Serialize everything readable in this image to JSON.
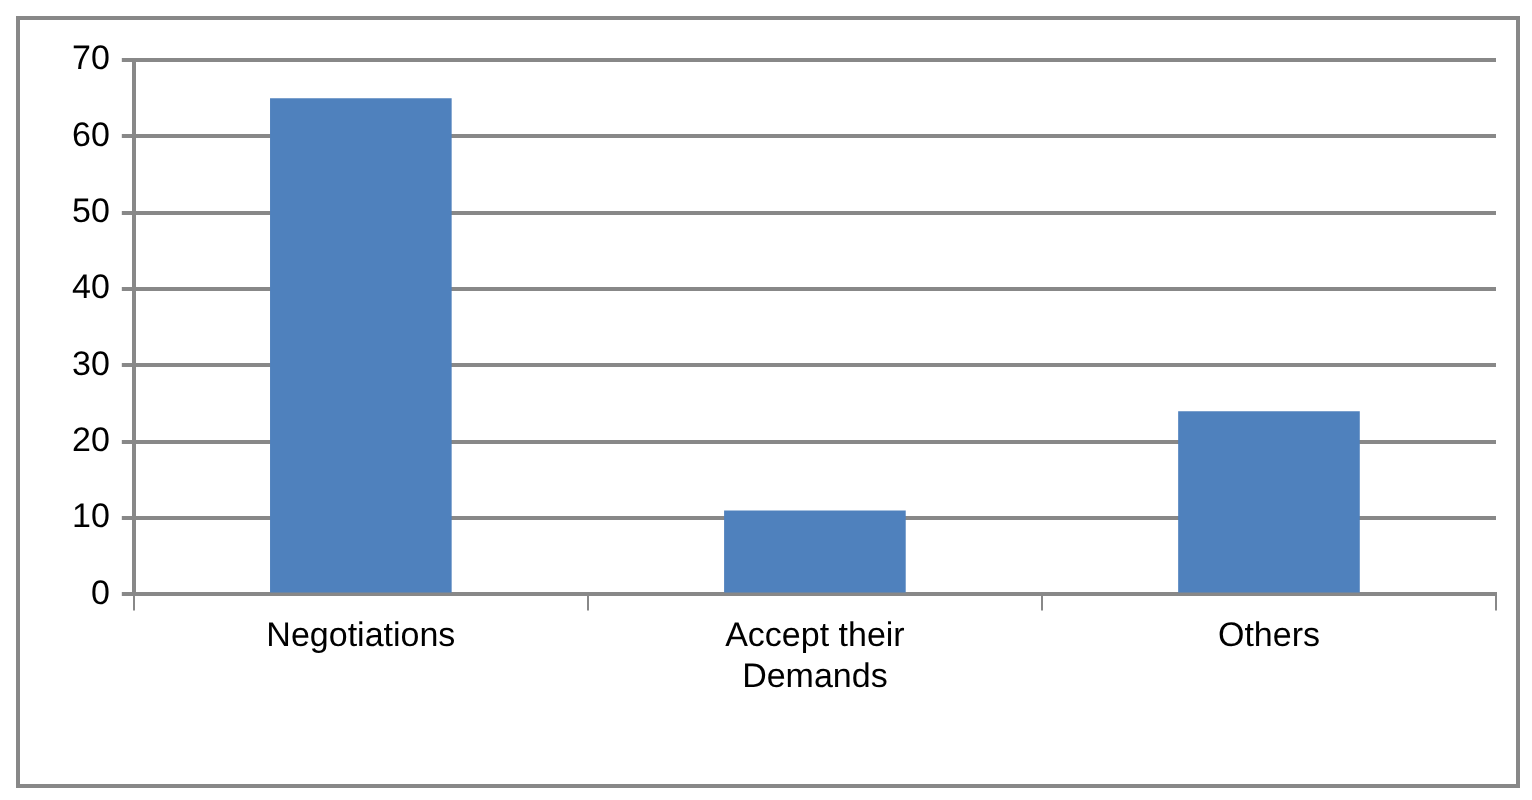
{
  "chart_data": {
    "type": "bar",
    "categories": [
      "Negotiations",
      "Accept their Demands",
      "Others"
    ],
    "values": [
      65,
      11,
      24
    ],
    "color": "#4f81bd",
    "ylim": [
      0,
      70
    ],
    "yticks": [
      0,
      10,
      20,
      30,
      40,
      50,
      60,
      70
    ],
    "grid": "y",
    "legend": false
  }
}
